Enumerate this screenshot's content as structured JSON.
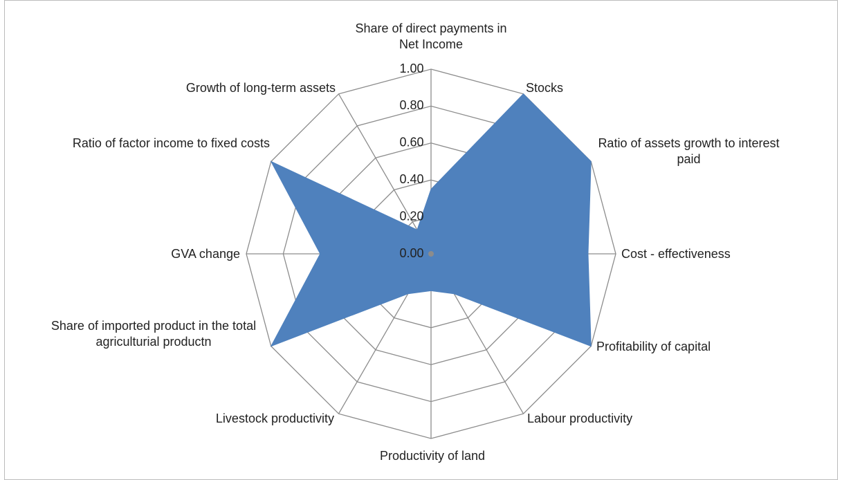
{
  "chart_data": {
    "type": "radar",
    "categories": [
      "Share of direct payments in Net Income",
      "Stocks",
      "Ratio of assets growth to interest paid",
      "Cost - effectiveness",
      "Profitability of capital",
      "Labour productivity",
      "Productivity of land",
      "Livestock productivity",
      "Share of imported product in the total agriculturial productn",
      "GVA change",
      "Ratio of factor income to fixed costs",
      "Growth of long-term assets"
    ],
    "values": [
      0.35,
      1.0,
      1.0,
      0.85,
      1.0,
      0.25,
      0.2,
      0.25,
      1.0,
      0.6,
      1.0,
      0.15
    ],
    "color": "#4f81bd",
    "ylim": [
      0,
      1
    ],
    "yticks": [
      {
        "value": 0,
        "label": "0.00"
      },
      {
        "value": 0.2,
        "label": "0.20"
      },
      {
        "value": 0.4,
        "label": "0.40"
      },
      {
        "value": 0.6,
        "label": "0.60"
      },
      {
        "value": 0.8,
        "label": "0.80"
      },
      {
        "value": 1,
        "label": "1.00"
      }
    ],
    "grid": true
  }
}
